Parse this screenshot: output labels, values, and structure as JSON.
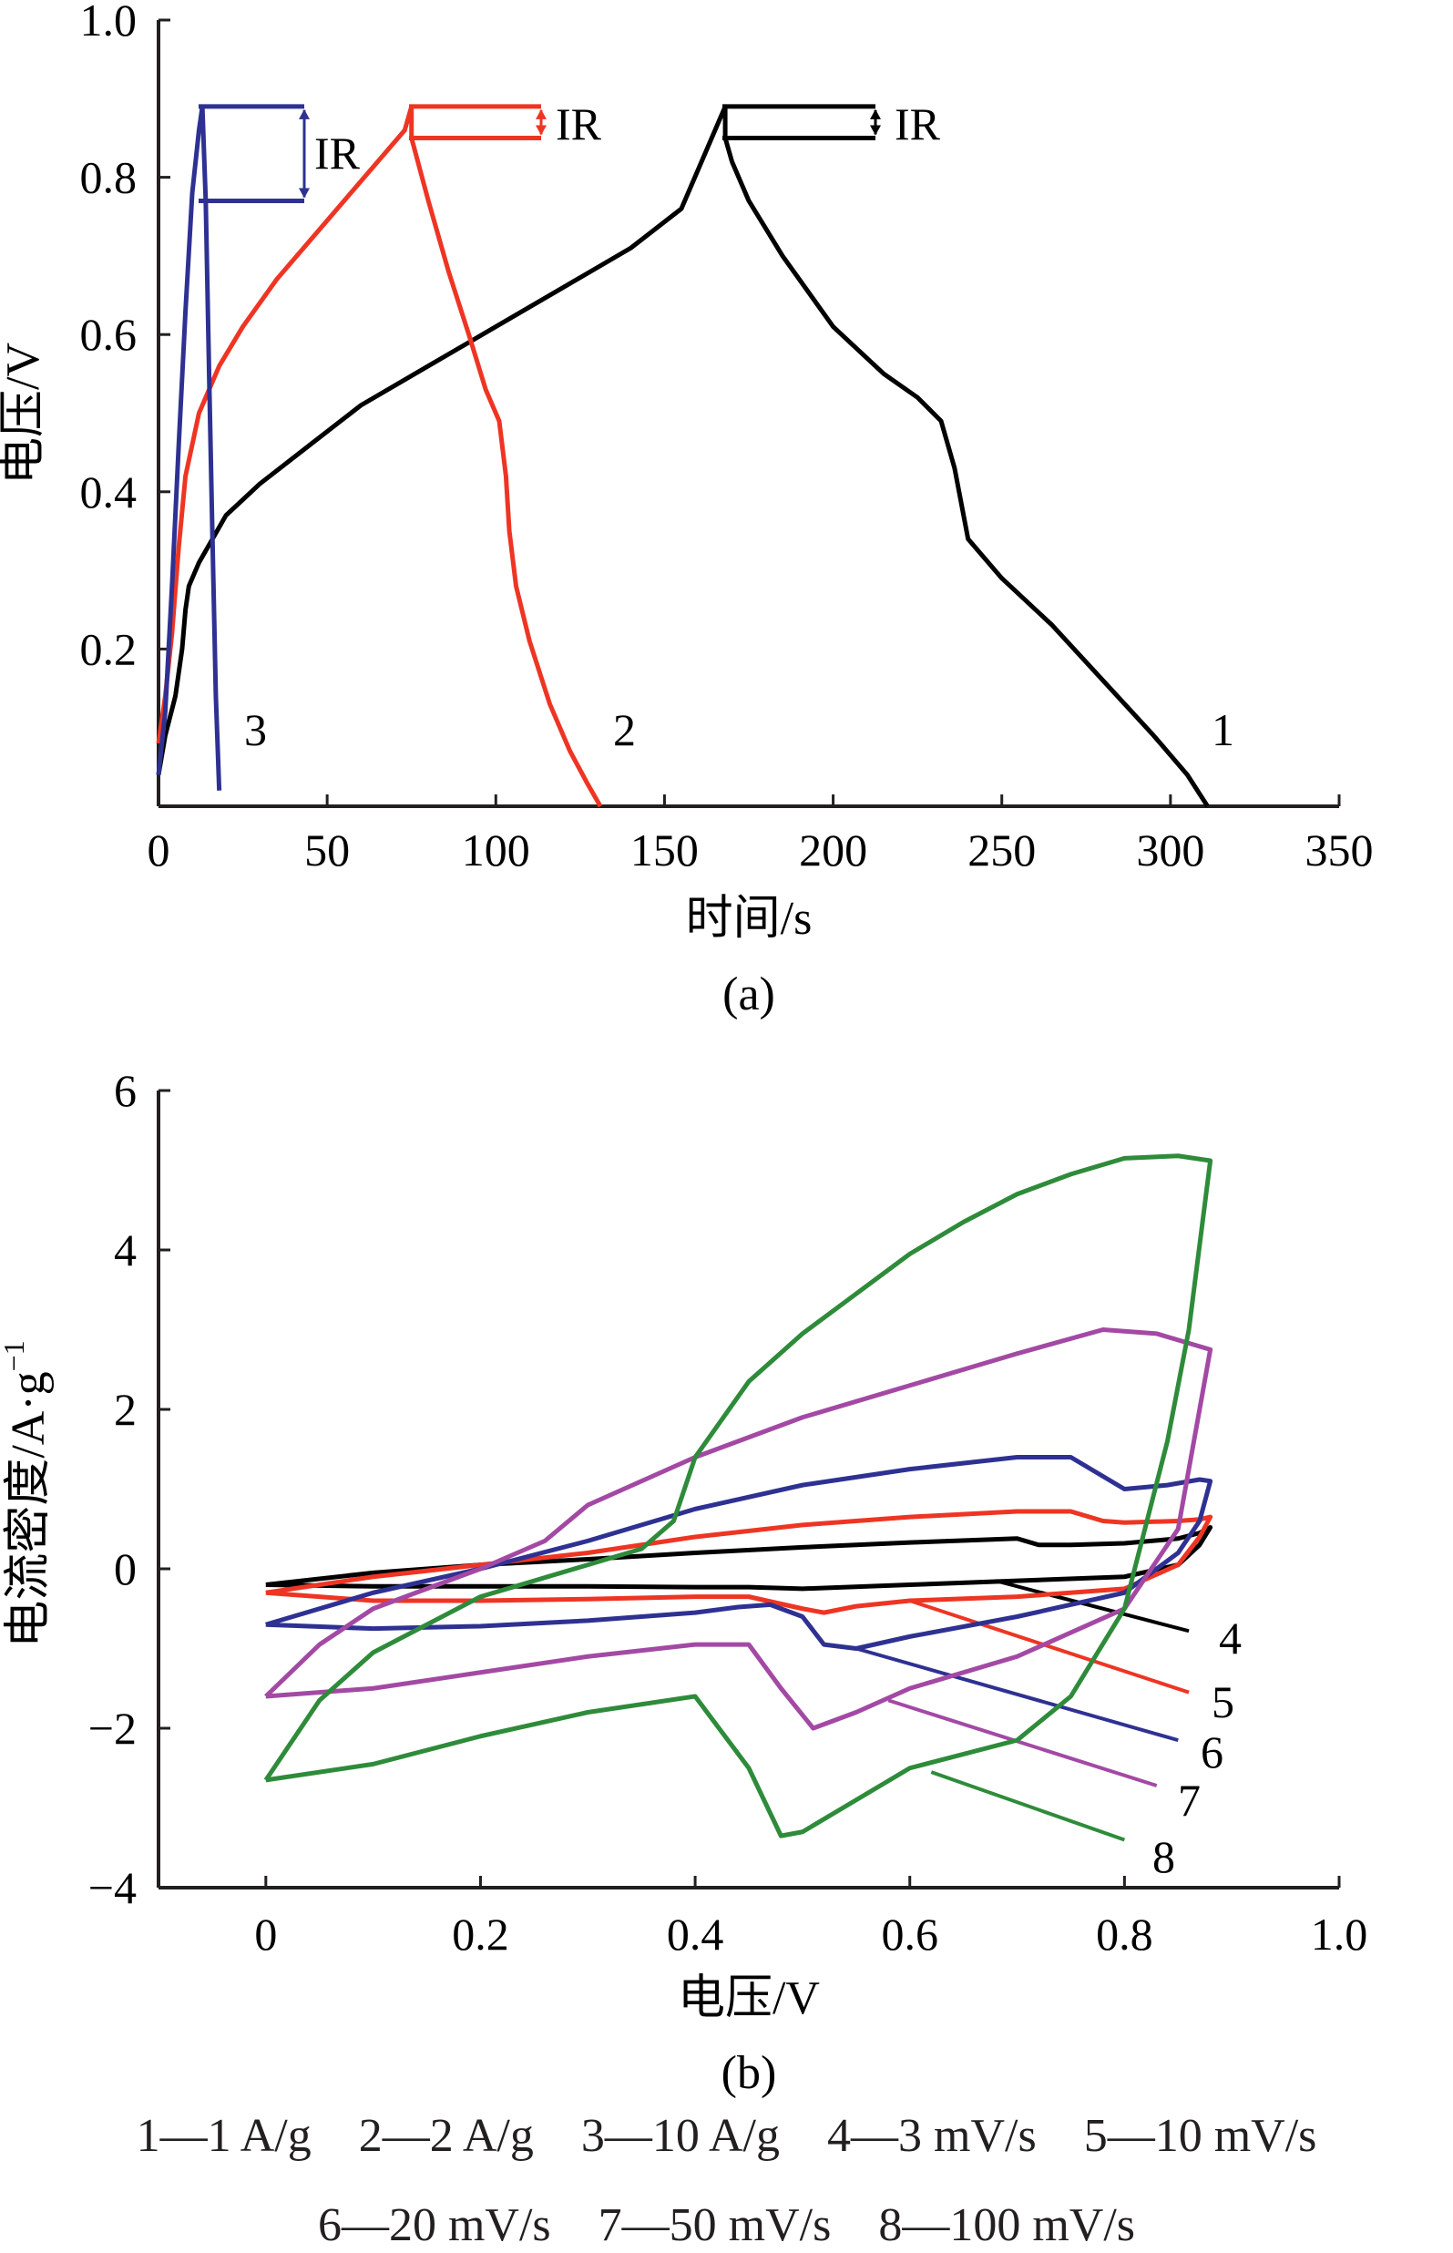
{
  "chart_data": [
    {
      "type": "line",
      "panel_label": "(a)",
      "xlabel": "时间/s",
      "ylabel": "电压/V",
      "xlim": [
        0,
        350
      ],
      "ylim": [
        0,
        1.0
      ],
      "xticks": [
        "0",
        "50",
        "100",
        "150",
        "200",
        "250",
        "300",
        "350"
      ],
      "yticks": [
        "0.2",
        "0.4",
        "0.6",
        "0.8",
        "1.0"
      ],
      "annotations": [
        "IR",
        "IR",
        "IR"
      ],
      "series": [
        {
          "name": "1",
          "color": "#000000",
          "x": [
            0,
            2,
            5,
            7,
            8,
            9,
            12,
            16,
            20,
            30,
            45,
            60,
            80,
            100,
            120,
            140,
            155,
            168,
            168,
            170,
            175,
            185,
            200,
            215,
            225,
            232,
            236,
            240,
            250,
            265,
            280,
            295,
            305,
            311
          ],
          "y": [
            0.04,
            0.09,
            0.14,
            0.2,
            0.25,
            0.28,
            0.31,
            0.34,
            0.37,
            0.41,
            0.46,
            0.51,
            0.56,
            0.61,
            0.66,
            0.71,
            0.76,
            0.89,
            0.85,
            0.82,
            0.77,
            0.7,
            0.61,
            0.55,
            0.52,
            0.49,
            0.43,
            0.34,
            0.29,
            0.23,
            0.16,
            0.09,
            0.04,
            0.0
          ]
        },
        {
          "name": "2",
          "color": "#ee3524",
          "x": [
            0,
            2,
            4,
            6,
            8,
            12,
            18,
            25,
            35,
            45,
            55,
            65,
            73,
            75,
            75,
            80,
            86,
            92,
            97,
            101,
            103,
            104,
            106,
            110,
            116,
            122,
            127,
            131
          ],
          "y": [
            0.08,
            0.14,
            0.22,
            0.33,
            0.42,
            0.5,
            0.56,
            0.61,
            0.67,
            0.72,
            0.77,
            0.82,
            0.86,
            0.89,
            0.85,
            0.77,
            0.68,
            0.6,
            0.53,
            0.49,
            0.42,
            0.35,
            0.28,
            0.21,
            0.13,
            0.07,
            0.03,
            0.0
          ]
        },
        {
          "name": "3",
          "color": "#2e3192",
          "x": [
            0,
            2,
            4,
            6,
            8,
            10,
            12,
            13,
            14,
            15,
            16,
            17,
            18
          ],
          "y": [
            0.04,
            0.12,
            0.28,
            0.46,
            0.63,
            0.78,
            0.86,
            0.89,
            0.77,
            0.55,
            0.34,
            0.14,
            0.02
          ]
        }
      ]
    },
    {
      "type": "line",
      "panel_label": "(b)",
      "xlabel": "电压/V",
      "ylabel": "电流密度/A·g",
      "ylabel_superscript": "−1",
      "xlim": [
        -0.1,
        1.0
      ],
      "ylim": [
        -4,
        6
      ],
      "xticks": [
        "0",
        "0.2",
        "0.4",
        "0.6",
        "0.8",
        "1.0"
      ],
      "yticks": [
        "−4",
        "−2",
        "0",
        "2",
        "4",
        "6"
      ],
      "series": [
        {
          "name": "4",
          "color": "#000000",
          "x": [
            0.0,
            0.1,
            0.2,
            0.3,
            0.4,
            0.5,
            0.6,
            0.7,
            0.72,
            0.75,
            0.8,
            0.85,
            0.87,
            0.88,
            0.87,
            0.85,
            0.8,
            0.7,
            0.6,
            0.5,
            0.45,
            0.4,
            0.3,
            0.2,
            0.1,
            0.0
          ],
          "y": [
            -0.2,
            -0.05,
            0.05,
            0.12,
            0.2,
            0.27,
            0.33,
            0.38,
            0.3,
            0.3,
            0.32,
            0.38,
            0.45,
            0.52,
            0.3,
            0.05,
            -0.1,
            -0.15,
            -0.2,
            -0.25,
            -0.23,
            -0.23,
            -0.22,
            -0.22,
            -0.22,
            -0.2
          ]
        },
        {
          "name": "5",
          "color": "#ee3524",
          "x": [
            0.0,
            0.1,
            0.2,
            0.3,
            0.4,
            0.5,
            0.6,
            0.7,
            0.75,
            0.78,
            0.8,
            0.85,
            0.87,
            0.88,
            0.87,
            0.85,
            0.8,
            0.7,
            0.6,
            0.55,
            0.52,
            0.5,
            0.45,
            0.4,
            0.3,
            0.2,
            0.1,
            0.0
          ],
          "y": [
            -0.3,
            -0.1,
            0.05,
            0.2,
            0.4,
            0.55,
            0.65,
            0.72,
            0.72,
            0.6,
            0.58,
            0.6,
            0.62,
            0.65,
            0.4,
            0.05,
            -0.25,
            -0.35,
            -0.4,
            -0.47,
            -0.55,
            -0.5,
            -0.35,
            -0.35,
            -0.38,
            -0.4,
            -0.4,
            -0.3
          ]
        },
        {
          "name": "6",
          "color": "#2e3192",
          "x": [
            0.0,
            0.1,
            0.2,
            0.3,
            0.4,
            0.5,
            0.6,
            0.7,
            0.75,
            0.8,
            0.84,
            0.87,
            0.88,
            0.87,
            0.85,
            0.8,
            0.7,
            0.6,
            0.55,
            0.52,
            0.5,
            0.47,
            0.44,
            0.4,
            0.3,
            0.2,
            0.1,
            0.0
          ],
          "y": [
            -0.7,
            -0.3,
            0.0,
            0.35,
            0.75,
            1.05,
            1.25,
            1.4,
            1.4,
            1.0,
            1.05,
            1.12,
            1.1,
            0.6,
            0.2,
            -0.3,
            -0.6,
            -0.85,
            -1.0,
            -0.95,
            -0.6,
            -0.45,
            -0.48,
            -0.55,
            -0.65,
            -0.72,
            -0.75,
            -0.7
          ]
        },
        {
          "name": "7",
          "color": "#a349a4",
          "x": [
            0.0,
            0.05,
            0.1,
            0.2,
            0.26,
            0.3,
            0.4,
            0.5,
            0.6,
            0.7,
            0.78,
            0.83,
            0.88,
            0.87,
            0.85,
            0.8,
            0.7,
            0.6,
            0.55,
            0.51,
            0.48,
            0.45,
            0.4,
            0.3,
            0.2,
            0.1,
            0.0
          ],
          "y": [
            -1.6,
            -0.95,
            -0.5,
            0.0,
            0.35,
            0.8,
            1.4,
            1.9,
            2.3,
            2.7,
            3.0,
            2.95,
            2.75,
            2.0,
            0.5,
            -0.5,
            -1.1,
            -1.5,
            -1.8,
            -2.0,
            -1.5,
            -0.95,
            -0.95,
            -1.1,
            -1.3,
            -1.5,
            -1.6
          ]
        },
        {
          "name": "8",
          "color": "#2e8b3a",
          "x": [
            0.0,
            0.05,
            0.1,
            0.2,
            0.3,
            0.35,
            0.38,
            0.4,
            0.45,
            0.5,
            0.55,
            0.6,
            0.65,
            0.7,
            0.75,
            0.8,
            0.85,
            0.88,
            0.86,
            0.84,
            0.8,
            0.75,
            0.7,
            0.6,
            0.55,
            0.5,
            0.48,
            0.45,
            0.4,
            0.3,
            0.2,
            0.1,
            0.0
          ],
          "y": [
            -2.65,
            -1.65,
            -1.05,
            -0.35,
            0.05,
            0.25,
            0.6,
            1.4,
            2.35,
            2.95,
            3.45,
            3.95,
            4.35,
            4.7,
            4.95,
            5.15,
            5.18,
            5.12,
            3.0,
            1.6,
            -0.5,
            -1.6,
            -2.15,
            -2.5,
            -2.9,
            -3.3,
            -3.35,
            -2.5,
            -1.6,
            -1.8,
            -2.1,
            -2.45,
            -2.65
          ]
        }
      ]
    }
  ],
  "legend": {
    "row1": [
      "1—1 A/g",
      "2—2 A/g",
      "3—10 A/g",
      "4—3 mV/s",
      "5—10 mV/s"
    ],
    "row2": [
      "6—20 mV/s",
      "7—50 mV/s",
      "8—100 mV/s"
    ]
  }
}
